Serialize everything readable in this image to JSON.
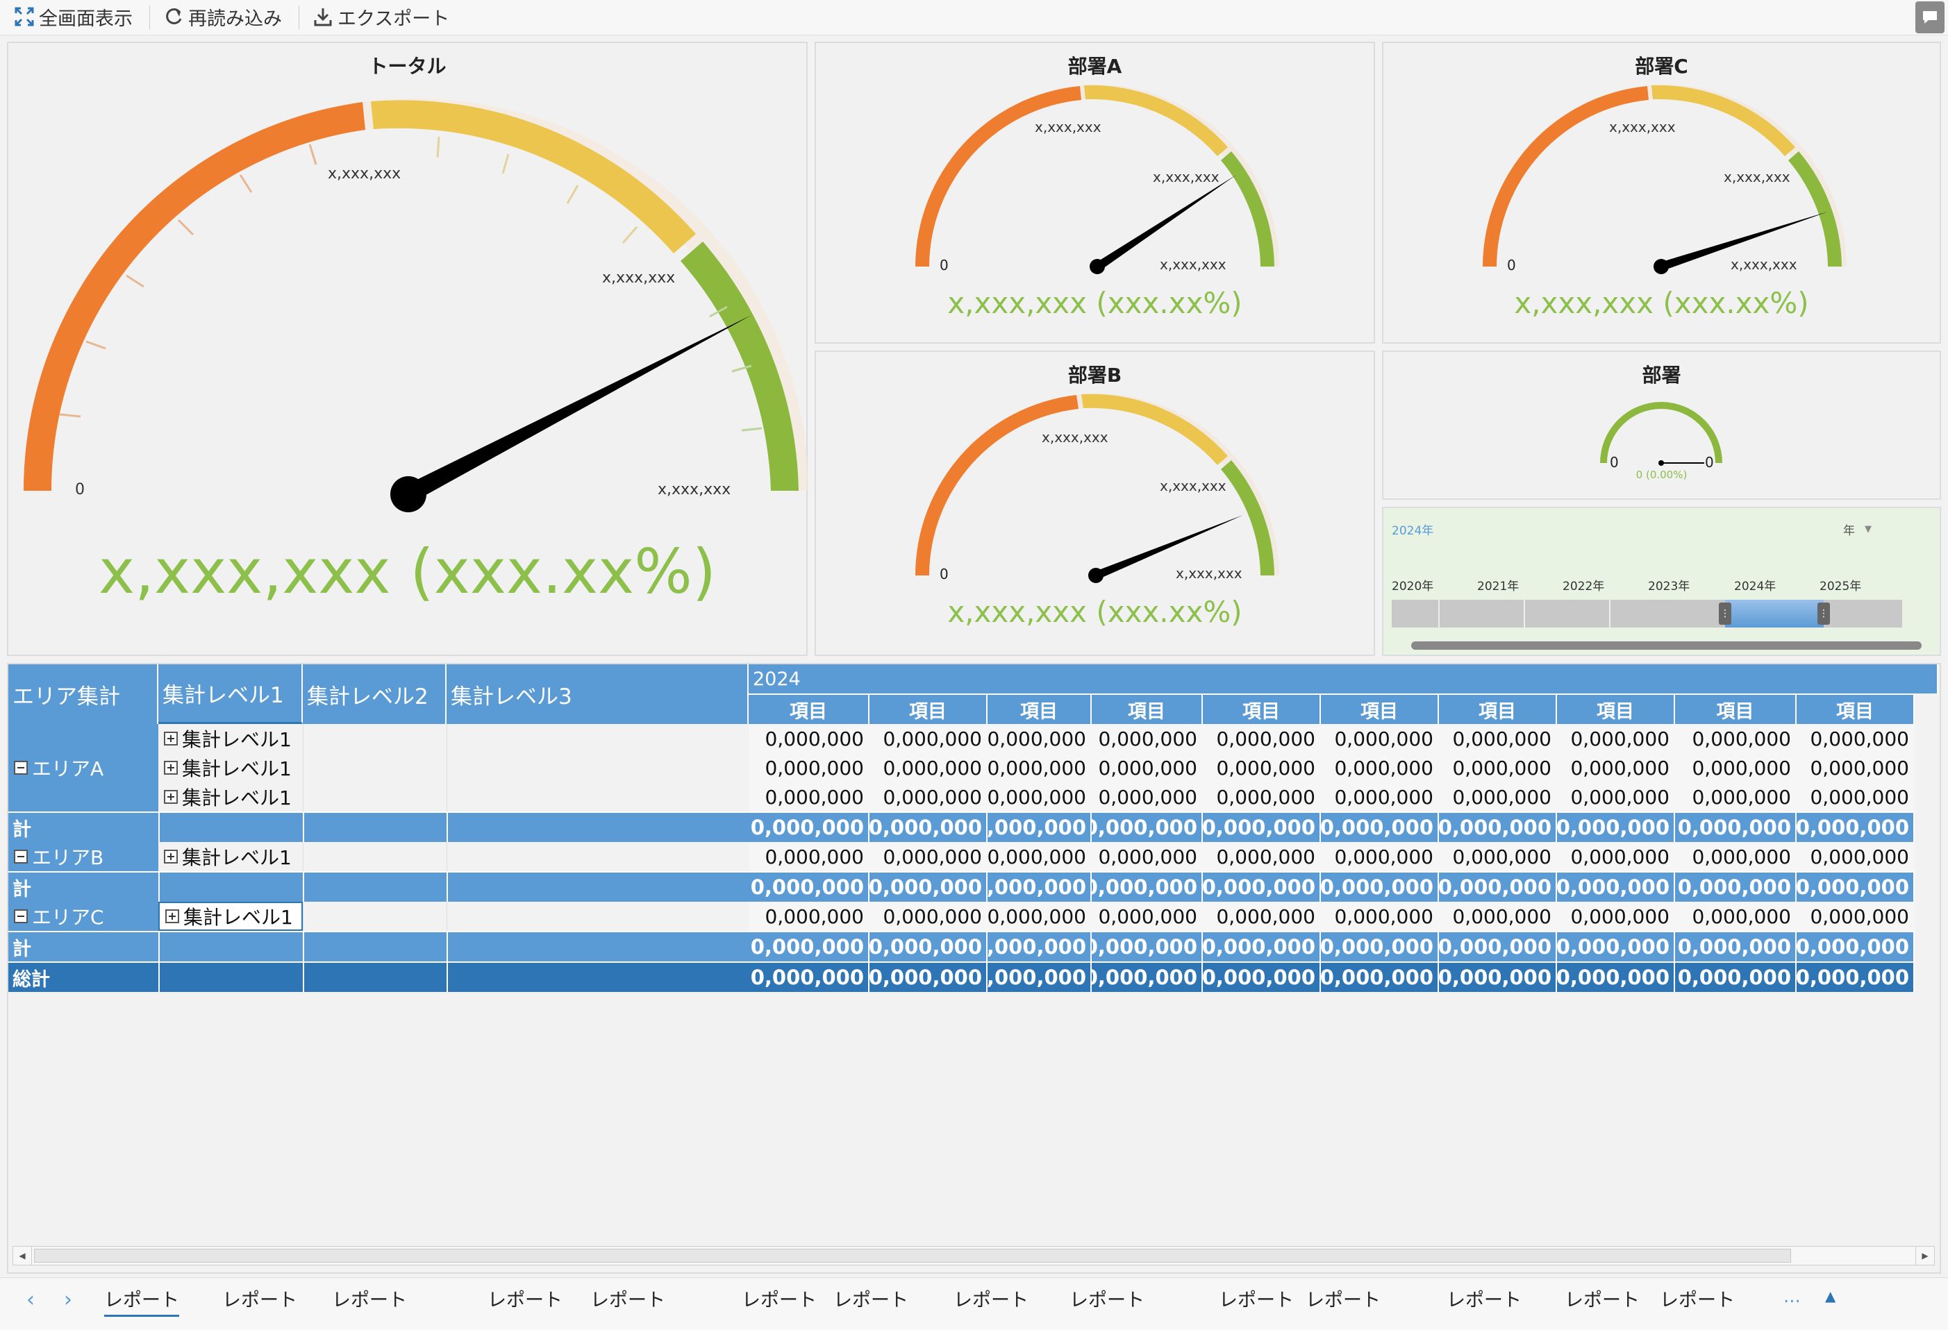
{
  "toolbar": {
    "fullscreen": "全画面表示",
    "reload": "再読み込み",
    "export": "エクスポート"
  },
  "gauges": {
    "total": {
      "title": "トータル",
      "min": "0",
      "mid": "x,xxx,xxx",
      "high": "x,xxx,xxx",
      "max": "x,xxx,xxx",
      "value": "x,xxx,xxx (xxx.xx%)"
    },
    "deptA": {
      "title": "部署A",
      "min": "0",
      "mid": "x,xxx,xxx",
      "high": "x,xxx,xxx",
      "max": "x,xxx,xxx",
      "value": "x,xxx,xxx (xxx.xx%)"
    },
    "deptC": {
      "title": "部署C",
      "min": "0",
      "mid": "x,xxx,xxx",
      "high": "x,xxx,xxx",
      "max": "x,xxx,xxx",
      "value": "x,xxx,xxx (xxx.xx%)"
    },
    "deptB": {
      "title": "部署B",
      "min": "0",
      "mid": "x,xxx,xxx",
      "high": "x,xxx,xxx",
      "max": "x,xxx,xxx",
      "value": "x,xxx,xxx (xxx.xx%)"
    },
    "dept": {
      "title": "部署",
      "min": "0",
      "max": "0",
      "value": "0 (0.00%)"
    }
  },
  "slider": {
    "selected": "2024年",
    "unit": "年",
    "years": [
      "2020年",
      "2021年",
      "2022年",
      "2023年",
      "2024年",
      "2025年"
    ]
  },
  "pivot": {
    "headers": {
      "area": "エリア集計",
      "lvl1": "集計レベル1",
      "lvl2": "集計レベル2",
      "lvl3": "集計レベル3",
      "year": "2024"
    },
    "item": "項目",
    "value": "0,000,000",
    "subtotal": "計",
    "grand_total": "総計",
    "areas": {
      "a": "エリアA",
      "b": "エリアB",
      "c": "エリアC"
    },
    "level1": "集計レベル1"
  },
  "tabs": {
    "label": "レポート",
    "more": "..."
  },
  "colors": {
    "orange": "#ee7d2f",
    "yellow": "#ebc54d",
    "green": "#8cb83e",
    "header_blue": "#5b9bd5",
    "total_blue": "#2e75b6",
    "value_green": "#8cc04a"
  }
}
